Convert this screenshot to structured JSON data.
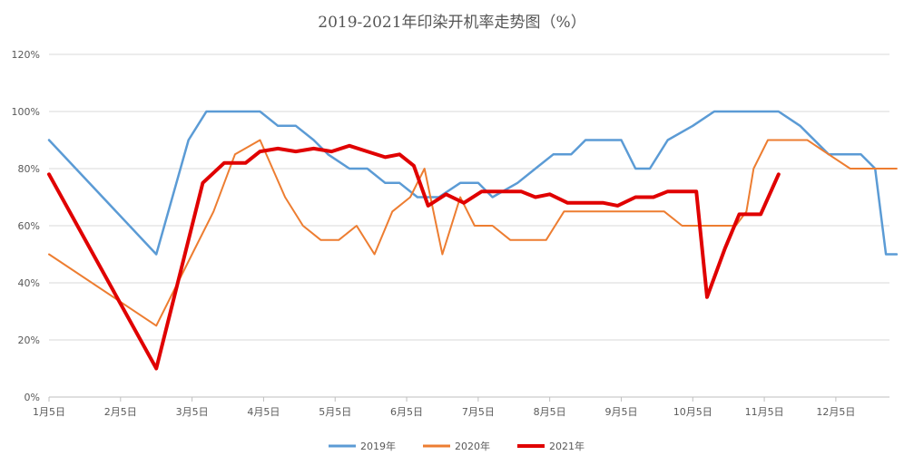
{
  "chart_data": {
    "type": "line",
    "title": "2019-2021年印染开机率走势图（%）",
    "xlabel": "",
    "ylabel": "",
    "ylim": [
      0,
      120
    ],
    "yticks": [
      "0%",
      "20%",
      "40%",
      "60%",
      "80%",
      "100%",
      "120%"
    ],
    "xticks": [
      "1月5日",
      "2月5日",
      "3月5日",
      "4月5日",
      "5月5日",
      "6月5日",
      "7月5日",
      "8月5日",
      "9月5日",
      "10月5日",
      "11月5日",
      "12月5日"
    ],
    "xdomain": [
      0,
      11.75
    ],
    "grid": true,
    "legend_position": "bottom",
    "series": [
      {
        "name": "2019年",
        "color": "#5b9bd5",
        "width": 2.5,
        "points": [
          [
            0,
            90
          ],
          [
            1.5,
            50
          ],
          [
            1.95,
            90
          ],
          [
            2.2,
            100
          ],
          [
            2.5,
            100
          ],
          [
            2.95,
            100
          ],
          [
            3.2,
            95
          ],
          [
            3.45,
            95
          ],
          [
            3.7,
            90
          ],
          [
            3.9,
            85
          ],
          [
            4.2,
            80
          ],
          [
            4.45,
            80
          ],
          [
            4.7,
            75
          ],
          [
            4.9,
            75
          ],
          [
            5.15,
            70
          ],
          [
            5.45,
            70
          ],
          [
            5.75,
            75
          ],
          [
            6.0,
            75
          ],
          [
            6.2,
            70
          ],
          [
            6.55,
            75
          ],
          [
            6.8,
            80
          ],
          [
            7.05,
            85
          ],
          [
            7.3,
            85
          ],
          [
            7.5,
            90
          ],
          [
            7.7,
            90
          ],
          [
            8.0,
            90
          ],
          [
            8.2,
            80
          ],
          [
            8.4,
            80
          ],
          [
            8.65,
            90
          ],
          [
            9.0,
            95
          ],
          [
            9.3,
            100
          ],
          [
            9.6,
            100
          ],
          [
            9.9,
            100
          ],
          [
            10.2,
            100
          ],
          [
            10.5,
            95
          ],
          [
            10.9,
            85
          ],
          [
            11.1,
            85
          ],
          [
            11.35,
            85
          ],
          [
            11.55,
            80
          ],
          [
            11.7,
            50
          ],
          [
            11.85,
            50
          ]
        ]
      },
      {
        "name": "2020年",
        "color": "#ed7d31",
        "width": 2,
        "points": [
          [
            0,
            50
          ],
          [
            1.5,
            25
          ],
          [
            2.0,
            50
          ],
          [
            2.3,
            65
          ],
          [
            2.6,
            85
          ],
          [
            2.95,
            90
          ],
          [
            3.3,
            70
          ],
          [
            3.55,
            60
          ],
          [
            3.8,
            55
          ],
          [
            4.05,
            55
          ],
          [
            4.3,
            60
          ],
          [
            4.55,
            50
          ],
          [
            4.8,
            65
          ],
          [
            5.05,
            70
          ],
          [
            5.25,
            80
          ],
          [
            5.5,
            50
          ],
          [
            5.75,
            70
          ],
          [
            5.95,
            60
          ],
          [
            6.2,
            60
          ],
          [
            6.45,
            55
          ],
          [
            6.7,
            55
          ],
          [
            6.95,
            55
          ],
          [
            7.2,
            65
          ],
          [
            7.5,
            65
          ],
          [
            7.8,
            65
          ],
          [
            8.1,
            65
          ],
          [
            8.4,
            65
          ],
          [
            8.6,
            65
          ],
          [
            8.85,
            60
          ],
          [
            9.1,
            60
          ],
          [
            9.4,
            60
          ],
          [
            9.6,
            60
          ],
          [
            9.75,
            65
          ],
          [
            9.85,
            80
          ],
          [
            10.05,
            90
          ],
          [
            10.3,
            90
          ],
          [
            10.6,
            90
          ],
          [
            10.9,
            85
          ],
          [
            11.2,
            80
          ],
          [
            11.5,
            80
          ],
          [
            11.75,
            80
          ],
          [
            11.85,
            80
          ]
        ]
      },
      {
        "name": "2021年",
        "color": "#e00000",
        "width": 4,
        "points": [
          [
            0,
            78
          ],
          [
            1.5,
            10
          ],
          [
            2.15,
            75
          ],
          [
            2.45,
            82
          ],
          [
            2.75,
            82
          ],
          [
            2.95,
            86
          ],
          [
            3.2,
            87
          ],
          [
            3.45,
            86
          ],
          [
            3.7,
            87
          ],
          [
            3.95,
            86
          ],
          [
            4.2,
            88
          ],
          [
            4.45,
            86
          ],
          [
            4.7,
            84
          ],
          [
            4.9,
            85
          ],
          [
            5.1,
            81
          ],
          [
            5.3,
            67
          ],
          [
            5.55,
            71
          ],
          [
            5.8,
            68
          ],
          [
            6.05,
            72
          ],
          [
            6.35,
            72
          ],
          [
            6.6,
            72
          ],
          [
            6.8,
            70
          ],
          [
            7.0,
            71
          ],
          [
            7.25,
            68
          ],
          [
            7.5,
            68
          ],
          [
            7.75,
            68
          ],
          [
            7.95,
            67
          ],
          [
            8.2,
            70
          ],
          [
            8.45,
            70
          ],
          [
            8.65,
            72
          ],
          [
            8.95,
            72
          ],
          [
            9.05,
            72
          ],
          [
            9.2,
            35
          ],
          [
            9.45,
            52
          ],
          [
            9.65,
            64
          ],
          [
            9.85,
            64
          ],
          [
            9.95,
            64
          ],
          [
            10.2,
            78
          ]
        ]
      }
    ]
  }
}
